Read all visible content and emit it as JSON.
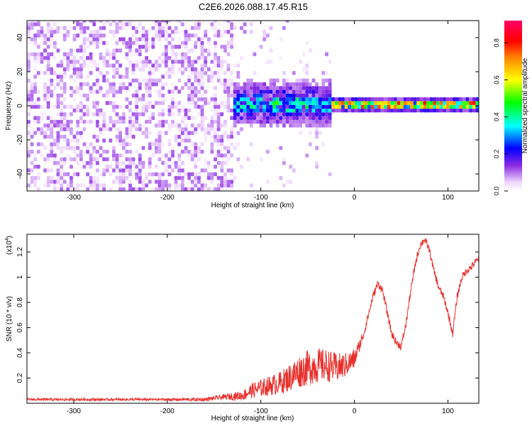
{
  "title": "C2E6.2026.088.17.45.R15",
  "chart_data": [
    {
      "type": "heatmap",
      "title": "C2E6.2026.088.17.45.R15",
      "xlabel": "Height of straight line (km)",
      "ylabel": "Frequency (Hz)",
      "xlim": [
        -350,
        133
      ],
      "ylim": [
        -50,
        50
      ],
      "xticks": [
        -300,
        -200,
        -100,
        0,
        100
      ],
      "xtick_labels": [
        "-300",
        "-200",
        "-100",
        "0",
        "100"
      ],
      "yticks": [
        -40,
        -20,
        0,
        20,
        40
      ],
      "ytick_labels": [
        "-40",
        "-20",
        "0",
        "20",
        "40"
      ],
      "description_of_field": [
        {
          "x_range": [
            -350,
            -130
          ],
          "pattern": "dense scattered noise",
          "amplitude_range": [
            0.0,
            0.12
          ]
        },
        {
          "x_range": [
            -130,
            -25
          ],
          "pattern": "signal band centered near 0 Hz, width about 20 Hz",
          "amplitude_range": [
            0.1,
            0.4
          ]
        },
        {
          "x_range": [
            -25,
            133
          ],
          "pattern": "narrow line at about 0 Hz",
          "amplitude_range": [
            0.2,
            0.85
          ]
        }
      ],
      "colorbar": {
        "label": "Normalized spectral amplitude",
        "range": [
          0,
          0.92
        ],
        "ticks": [
          0.0,
          0.2,
          0.4,
          0.6,
          0.8
        ],
        "tick_labels": [
          "0.0",
          "0.2",
          "0.4",
          "0.6",
          "0.8"
        ]
      }
    },
    {
      "type": "line",
      "xlabel": "Height of straight line (km)",
      "ylabel": "SNR (10 * v/v)",
      "scale_note": "(x10",
      "scale_exp": "4",
      "xlim": [
        -350,
        133
      ],
      "ylim": [
        0,
        1.34
      ],
      "xticks": [
        -300,
        -200,
        -100,
        0,
        100
      ],
      "xtick_labels": [
        "-300",
        "-200",
        "-100",
        "0",
        "100"
      ],
      "yticks": [
        0.2,
        0.4,
        0.6,
        0.8,
        1.0,
        1.2
      ],
      "ytick_labels": [
        "0.2",
        "0.4",
        "0.6",
        "0.8",
        "1",
        "1.2"
      ],
      "series": [
        {
          "name": "SNR",
          "color": "#e8302c",
          "x": [
            -350,
            -300,
            -250,
            -200,
            -160,
            -140,
            -120,
            -110,
            -100,
            -90,
            -80,
            -70,
            -60,
            -50,
            -40,
            -30,
            -20,
            -10,
            0,
            5,
            10,
            15,
            20,
            25,
            30,
            35,
            40,
            45,
            50,
            55,
            60,
            65,
            70,
            75,
            80,
            85,
            90,
            95,
            100,
            105,
            110,
            115,
            120,
            125,
            133
          ],
          "y": [
            0.03,
            0.03,
            0.03,
            0.03,
            0.03,
            0.05,
            0.06,
            0.1,
            0.12,
            0.14,
            0.16,
            0.2,
            0.25,
            0.28,
            0.3,
            0.3,
            0.28,
            0.3,
            0.35,
            0.45,
            0.55,
            0.7,
            0.85,
            0.95,
            0.9,
            0.72,
            0.55,
            0.48,
            0.45,
            0.62,
            0.88,
            1.1,
            1.25,
            1.3,
            1.22,
            1.05,
            0.92,
            0.85,
            0.72,
            0.55,
            0.85,
            1.0,
            1.05,
            1.08,
            1.15
          ],
          "noise": [
            0.01,
            0.01,
            0.01,
            0.01,
            0.015,
            0.02,
            0.04,
            0.06,
            0.07,
            0.08,
            0.09,
            0.11,
            0.13,
            0.14,
            0.14,
            0.13,
            0.12,
            0.1,
            0.08,
            0.05,
            0.04,
            0.03,
            0.03,
            0.03,
            0.03,
            0.03,
            0.03,
            0.03,
            0.03,
            0.03,
            0.03,
            0.03,
            0.03,
            0.03,
            0.03,
            0.03,
            0.03,
            0.03,
            0.03,
            0.03,
            0.03,
            0.03,
            0.03,
            0.03,
            0.03
          ]
        }
      ]
    }
  ]
}
